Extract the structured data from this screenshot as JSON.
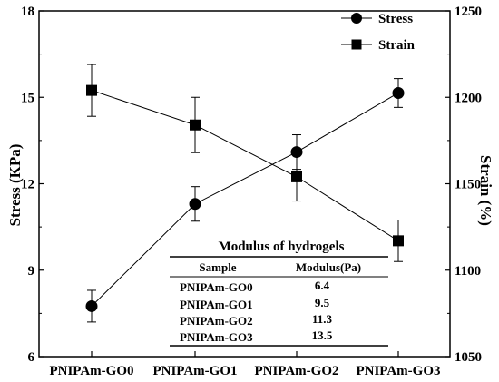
{
  "chart_data": {
    "type": "line",
    "categories": [
      "PNIPAm-GO0",
      "PNIPAm-GO1",
      "PNIPAm-GO2",
      "PNIPAm-GO3"
    ],
    "ylabel": "Stress (KPa)",
    "y2label": "Strain (%)",
    "ylim": [
      6,
      18
    ],
    "y2lim": [
      1050,
      1250
    ],
    "yticks": [
      "6",
      "9",
      "12",
      "15",
      "18"
    ],
    "y2ticks": [
      "1050",
      "1100",
      "1150",
      "1200",
      "1250"
    ],
    "legend_position": "top-right",
    "series": [
      {
        "name": "Stress",
        "axis": "left",
        "marker": "circle",
        "values": [
          7.75,
          11.3,
          13.1,
          15.15
        ],
        "errors": [
          0.55,
          0.6,
          0.6,
          0.5
        ]
      },
      {
        "name": "Strain",
        "axis": "right",
        "marker": "square",
        "values": [
          1204,
          1184,
          1154,
          1117
        ],
        "errors": [
          15,
          16,
          14,
          12
        ]
      }
    ],
    "inset_table": {
      "title": "Modulus of hydrogels",
      "headers": [
        "Sample",
        "Modulus(Pa)"
      ],
      "rows": [
        [
          "PNIPAm-GO0",
          "6.4"
        ],
        [
          "PNIPAm-GO1",
          "9.5"
        ],
        [
          "PNIPAm-GO2",
          "11.3"
        ],
        [
          "PNIPAm-GO3",
          "13.5"
        ]
      ]
    }
  }
}
